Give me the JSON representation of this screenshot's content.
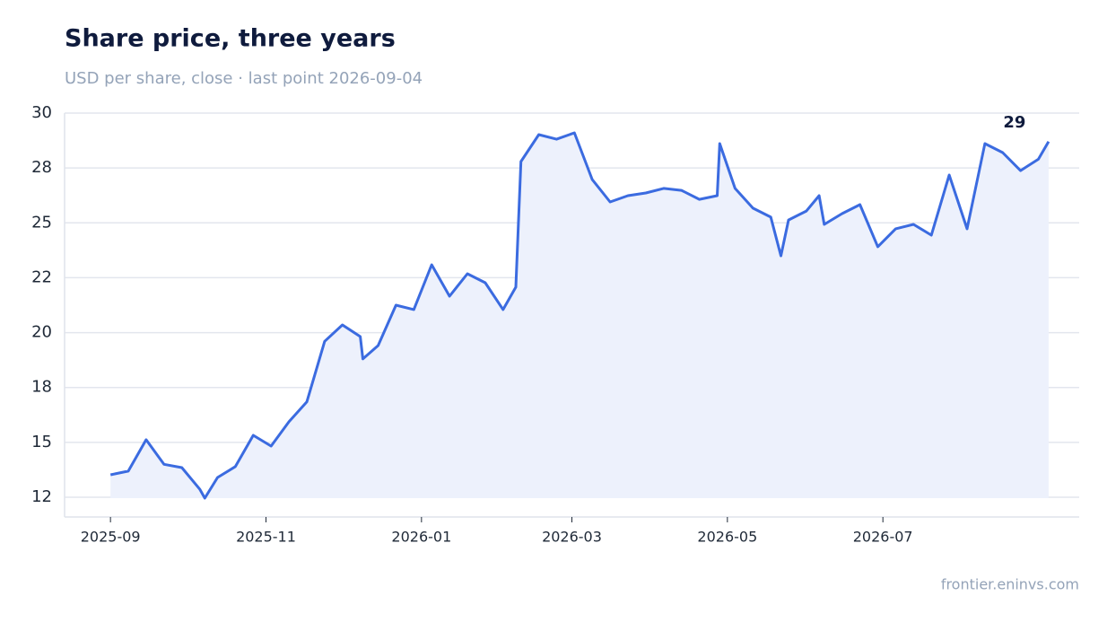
{
  "chart_data": {
    "type": "line",
    "title": "Share price, three years",
    "subtitle": "USD per share, close · last point 2026-09-04",
    "source": "frontier.eninvs.com",
    "color": "#3b6be0",
    "fill_color": "#edf1fc",
    "grid": true,
    "x": [
      "2025-09-01",
      "2025-09-08",
      "2025-09-15",
      "2025-09-22",
      "2025-09-29",
      "2025-10-06",
      "2025-10-08",
      "2025-10-13",
      "2025-10-20",
      "2025-10-27",
      "2025-11-03",
      "2025-11-10",
      "2025-11-17",
      "2025-11-24",
      "2025-12-01",
      "2025-12-08",
      "2025-12-09",
      "2025-12-15",
      "2025-12-22",
      "2025-12-29",
      "2026-01-05",
      "2026-01-12",
      "2026-01-19",
      "2026-01-26",
      "2026-02-02",
      "2026-02-07",
      "2026-02-09",
      "2026-02-16",
      "2026-02-23",
      "2026-03-02",
      "2026-03-09",
      "2026-03-16",
      "2026-03-23",
      "2026-03-30",
      "2026-04-06",
      "2026-04-13",
      "2026-04-20",
      "2026-04-27",
      "2026-04-28",
      "2026-05-04",
      "2026-05-11",
      "2026-05-18",
      "2026-05-22",
      "2026-05-25",
      "2026-06-01",
      "2026-06-06",
      "2026-06-08",
      "2026-06-15",
      "2026-06-22",
      "2026-06-29",
      "2026-07-06",
      "2026-07-13",
      "2026-07-20",
      "2026-07-27",
      "2026-08-03",
      "2026-08-10",
      "2026-08-17",
      "2026-08-24",
      "2026-08-31",
      "2026-09-04"
    ],
    "values": [
      13.52,
      13.69,
      15.12,
      14.0,
      13.85,
      12.87,
      12.46,
      13.4,
      13.9,
      15.32,
      14.83,
      15.94,
      16.84,
      19.6,
      20.35,
      19.82,
      18.8,
      19.41,
      21.25,
      21.05,
      23.09,
      21.66,
      22.68,
      22.27,
      21.05,
      22.07,
      27.79,
      29.02,
      28.81,
      29.1,
      26.97,
      25.95,
      26.24,
      26.36,
      26.57,
      26.48,
      26.07,
      26.24,
      28.61,
      26.57,
      25.67,
      25.26,
      23.5,
      25.13,
      25.54,
      26.24,
      24.93,
      25.42,
      25.83,
      23.91,
      24.73,
      24.93,
      24.44,
      27.18,
      24.73,
      28.61,
      28.2,
      27.38,
      27.9,
      28.7
    ],
    "annotations": [
      {
        "label": "29",
        "x": "2026-09-04",
        "y": 28.7
      }
    ],
    "xlim": [
      "2025-08-14",
      "2026-09-16"
    ],
    "xticks": [
      {
        "value": "2025-09-01",
        "label": "2025-09"
      },
      {
        "value": "2025-11-01",
        "label": "2025-11"
      },
      {
        "value": "2026-01-01",
        "label": "2026-01"
      },
      {
        "value": "2026-03-01",
        "label": "2026-03"
      },
      {
        "value": "2026-05-01",
        "label": "2026-05"
      },
      {
        "value": "2026-07-01",
        "label": "2026-07"
      }
    ],
    "ylim": [
      11.6,
      30
    ],
    "yticks": [
      {
        "value": 12.5,
        "label": "12"
      },
      15,
      {
        "value": 17.5,
        "label": "18"
      },
      20,
      {
        "value": 22.5,
        "label": "22"
      },
      25,
      {
        "value": 27.5,
        "label": "28"
      },
      30
    ]
  }
}
